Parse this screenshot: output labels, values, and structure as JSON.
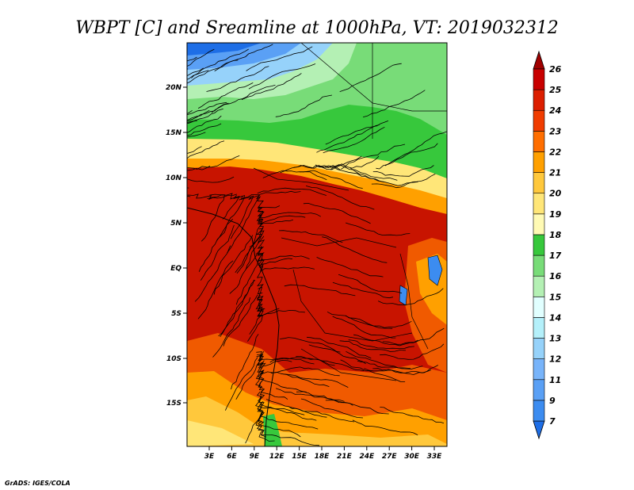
{
  "title": "WBPT [C] and Sreamline at 1000hPa, VT: 2019032312",
  "credit": "GrADS: IGES/COLA",
  "map": {
    "lat_labels": [
      "20N",
      "15N",
      "10N",
      "5N",
      "EQ",
      "5S",
      "10S",
      "15S"
    ],
    "lon_labels": [
      "3E",
      "6E",
      "9E",
      "12E",
      "15E",
      "18E",
      "21E",
      "24E",
      "27E",
      "30E",
      "33E"
    ]
  },
  "colorbar": {
    "labels": [
      "7",
      "9",
      "11",
      "12",
      "13",
      "14",
      "15",
      "16",
      "17",
      "18",
      "19",
      "20",
      "21",
      "22",
      "23",
      "24",
      "25",
      "26"
    ],
    "colors": [
      "#1e6ee6",
      "#3c8cf0",
      "#5aa0f5",
      "#78b4fa",
      "#96d2fa",
      "#b4f0fa",
      "#e1ffff",
      "#b4f0b4",
      "#78dc78",
      "#37c83c",
      "#fffab4",
      "#ffe678",
      "#ffc83c",
      "#ffa000",
      "#ff6e00",
      "#f03c00",
      "#dc1e00",
      "#c80000",
      "#a00000"
    ]
  }
}
